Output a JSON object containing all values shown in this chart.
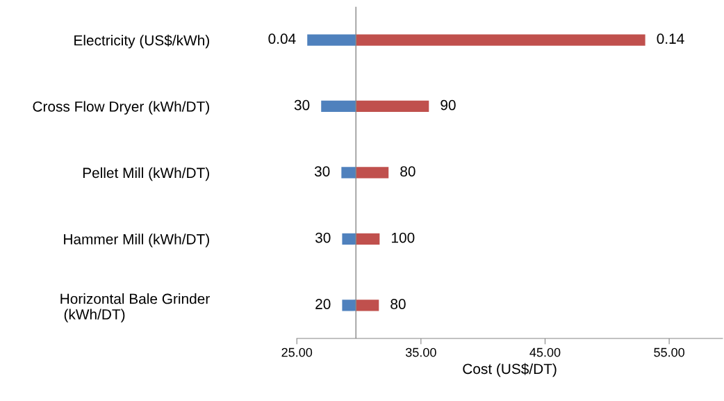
{
  "chart_data": {
    "type": "bar",
    "orientation": "horizontal",
    "categories": [
      "Electricity (US$/kWh)",
      "Cross Flow Dryer (kWh/DT)",
      "Pellet Mill (kWh/DT)",
      "Hammer Mill (kWh/DT)",
      "Horizontal Bale Grinder\n (kWh/DT)"
    ],
    "series": [
      {
        "color": "#4f81bd",
        "base": [
          25.84,
          26.96,
          28.59,
          28.65,
          28.65
        ],
        "values": [
          3.92,
          2.8,
          1.17,
          1.11,
          1.11
        ]
      },
      {
        "color": "#c0504d",
        "base": [
          29.76,
          29.76,
          29.76,
          29.76,
          29.76
        ],
        "values": [
          23.31,
          5.88,
          2.63,
          1.91,
          1.85
        ]
      }
    ],
    "annotations": [
      {
        "text": "0.04",
        "x": 25.84,
        "y": "Electricity (US$/kWh)"
      },
      {
        "text": "30",
        "x": 26.96,
        "y": "Cross Flow Dryer (kWh/DT)"
      },
      {
        "text": "30",
        "x": 28.59,
        "y": "Pellet Mill (kWh/DT)"
      },
      {
        "text": "30",
        "x": 28.65,
        "y": "Hammer Mill (kWh/DT)"
      },
      {
        "text": "20",
        "x": 28.65,
        "y": "Horizontal Bale Grinder\n (kWh/DT)"
      },
      {
        "text": "0.14",
        "x": 53.07,
        "y": "Electricity (US$/kWh)"
      },
      {
        "text": "90",
        "x": 35.64,
        "y": "Cross Flow Dryer (kWh/DT)"
      },
      {
        "text": "80",
        "x": 32.39,
        "y": "Pellet Mill (kWh/DT)"
      },
      {
        "text": "100",
        "x": 31.67,
        "y": "Hammer Mill (kWh/DT)"
      },
      {
        "text": "80",
        "x": 31.61,
        "y": "Horizontal Bale Grinder\n (kWh/DT)"
      }
    ],
    "ref_lines": [
      {
        "axis": "x",
        "value": 29.76,
        "color": "#868686"
      }
    ],
    "xlabel": "Cost (US$/DT)",
    "xlim": [
      25,
      59.3
    ],
    "xticks": [
      {
        "value": 25,
        "label": "25.00"
      },
      {
        "value": 35,
        "label": "35.00"
      },
      {
        "value": 45,
        "label": "45.00"
      },
      {
        "value": 55,
        "label": "55.00"
      }
    ],
    "grid": false,
    "legend": false
  }
}
